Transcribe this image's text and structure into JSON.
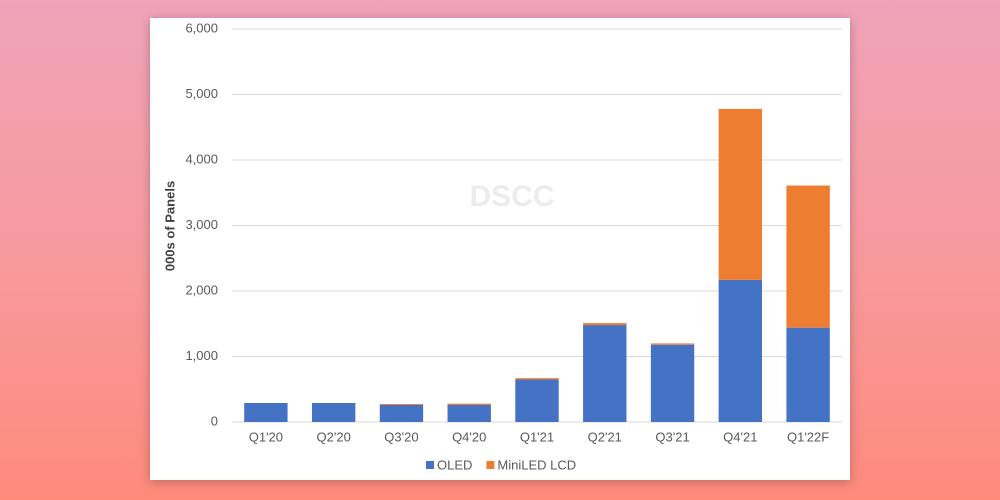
{
  "chart_data": {
    "type": "bar",
    "stacked": true,
    "y_label": "000s of Panels",
    "watermark": "DSCC",
    "categories": [
      "Q1'20",
      "Q2'20",
      "Q3'20",
      "Q4'20",
      "Q1'21",
      "Q2'21",
      "Q3'21",
      "Q4'21",
      "Q1'22F"
    ],
    "series": [
      {
        "name": "OLED",
        "color": "#4472c4",
        "values": [
          290,
          290,
          260,
          260,
          650,
          1480,
          1180,
          2170,
          1440
        ]
      },
      {
        "name": "MiniLED LCD",
        "color": "#ed7d31",
        "values": [
          0,
          0,
          15,
          20,
          20,
          30,
          20,
          2610,
          2170
        ]
      }
    ],
    "ylim": [
      0,
      6000
    ],
    "yticks": [
      0,
      {
        "value": 1000,
        "label": "1,000"
      },
      {
        "value": 2000,
        "label": "2,000"
      },
      {
        "value": 3000,
        "label": "3,000"
      },
      {
        "value": 4000,
        "label": "4,000"
      },
      {
        "value": 5000,
        "label": "5,000"
      },
      {
        "value": 6000,
        "label": "6,000"
      }
    ],
    "grid": true,
    "legend": "bottom"
  }
}
